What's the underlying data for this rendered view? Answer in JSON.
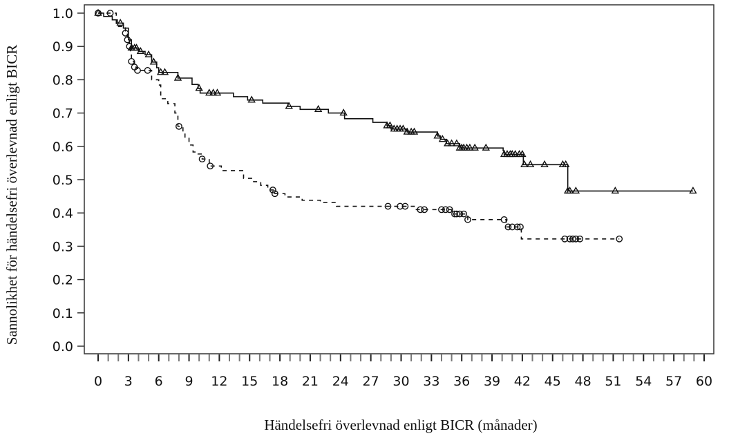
{
  "chart_data": {
    "type": "line",
    "subtype": "kaplan-meier",
    "title": "",
    "xlabel": "Händelsefri överlevnad enligt BICR (månader)",
    "ylabel": "Sannolikhet för händelsefri överlevnad enligt BICR",
    "xlim": [
      0,
      60
    ],
    "ylim": [
      0,
      1
    ],
    "xticks": [
      "0",
      "3",
      "6",
      "9",
      "12",
      "15",
      "18",
      "21",
      "24",
      "27",
      "30",
      "33",
      "36",
      "39",
      "42",
      "45",
      "48",
      "51",
      "54",
      "57",
      "60"
    ],
    "yticks": [
      "0.0",
      "0.1",
      "0.2",
      "0.3",
      "0.4",
      "0.5",
      "0.6",
      "0.7",
      "0.8",
      "0.9",
      "1.0"
    ],
    "grid": false,
    "series": [
      {
        "name": "solid-triangles",
        "line_style": "solid",
        "marker": "triangle",
        "color": "#111111",
        "steps": [
          [
            0,
            1.0
          ],
          [
            0.55,
            0.99
          ],
          [
            1.4,
            0.98
          ],
          [
            1.9,
            0.97
          ],
          [
            2.5,
            0.955
          ],
          [
            3.0,
            0.92
          ],
          [
            3.3,
            0.895
          ],
          [
            4.0,
            0.885
          ],
          [
            4.65,
            0.875
          ],
          [
            5.3,
            0.853
          ],
          [
            5.8,
            0.836
          ],
          [
            6.0,
            0.822
          ],
          [
            7.9,
            0.805
          ],
          [
            9.3,
            0.786
          ],
          [
            9.9,
            0.774
          ],
          [
            10.1,
            0.76
          ],
          [
            13.4,
            0.749
          ],
          [
            14.8,
            0.739
          ],
          [
            16.3,
            0.73
          ],
          [
            18.8,
            0.72
          ],
          [
            20.0,
            0.711
          ],
          [
            22.8,
            0.7
          ],
          [
            24.4,
            0.683
          ],
          [
            27.2,
            0.672
          ],
          [
            28.6,
            0.662
          ],
          [
            29.0,
            0.652
          ],
          [
            30.6,
            0.643
          ],
          [
            33.6,
            0.631
          ],
          [
            33.9,
            0.621
          ],
          [
            34.5,
            0.608
          ],
          [
            35.8,
            0.595
          ],
          [
            40.1,
            0.587
          ],
          [
            40.2,
            0.576
          ],
          [
            42.1,
            0.545
          ],
          [
            46.5,
            0.466
          ]
        ],
        "end": 58.9,
        "censored": [
          0,
          2.2,
          3.3,
          3.6,
          3.8,
          4.2,
          5.0,
          5.5,
          6.2,
          6.6,
          7.9,
          10.0,
          11.0,
          11.4,
          11.8,
          15.2,
          18.9,
          21.8,
          24.3,
          28.6,
          28.9,
          29.3,
          29.6,
          29.9,
          30.2,
          30.6,
          31.0,
          31.3,
          33.6,
          34.1,
          34.6,
          35.0,
          35.5,
          35.8,
          36.0,
          36.2,
          36.5,
          36.8,
          37.3,
          38.4,
          40.2,
          40.5,
          40.8,
          41.0,
          41.3,
          41.7,
          42.0,
          42.2,
          42.8,
          44.2,
          46.0,
          46.3,
          46.5,
          46.7,
          47.3,
          51.2,
          58.9
        ]
      },
      {
        "name": "dashed-circles",
        "line_style": "dashed",
        "marker": "circle",
        "color": "#111111",
        "steps": [
          [
            0,
            1.0
          ],
          [
            1.8,
            0.96
          ],
          [
            2.7,
            0.94
          ],
          [
            2.9,
            0.92
          ],
          [
            3.1,
            0.9
          ],
          [
            3.2,
            0.874
          ],
          [
            3.3,
            0.855
          ],
          [
            3.6,
            0.838
          ],
          [
            3.9,
            0.828
          ],
          [
            5.3,
            0.8
          ],
          [
            6.0,
            0.784
          ],
          [
            6.2,
            0.743
          ],
          [
            6.9,
            0.728
          ],
          [
            7.6,
            0.7
          ],
          [
            7.9,
            0.66
          ],
          [
            8.4,
            0.641
          ],
          [
            8.6,
            0.624
          ],
          [
            9.0,
            0.604
          ],
          [
            9.4,
            0.583
          ],
          [
            9.9,
            0.577
          ],
          [
            10.3,
            0.562
          ],
          [
            11.0,
            0.541
          ],
          [
            12.2,
            0.527
          ],
          [
            14.4,
            0.504
          ],
          [
            15.4,
            0.494
          ],
          [
            16.1,
            0.483
          ],
          [
            16.8,
            0.469
          ],
          [
            17.5,
            0.458
          ],
          [
            18.5,
            0.448
          ],
          [
            20.2,
            0.438
          ],
          [
            22.0,
            0.431
          ],
          [
            23.6,
            0.42
          ],
          [
            31.3,
            0.41
          ],
          [
            35.0,
            0.397
          ],
          [
            36.6,
            0.38
          ],
          [
            40.4,
            0.358
          ],
          [
            41.9,
            0.322
          ]
        ],
        "end": 51.6,
        "censored": [
          0,
          1.2,
          2.7,
          2.9,
          3.1,
          3.3,
          3.6,
          3.9,
          4.9,
          8.0,
          10.3,
          11.1,
          17.3,
          17.5,
          28.7,
          29.9,
          30.4,
          31.9,
          32.3,
          34.0,
          34.4,
          34.8,
          35.3,
          35.5,
          35.8,
          36.2,
          36.6,
          40.2,
          40.6,
          41.0,
          41.5,
          41.8,
          46.2,
          46.7,
          47.0,
          47.3,
          47.7,
          51.6
        ]
      }
    ]
  }
}
